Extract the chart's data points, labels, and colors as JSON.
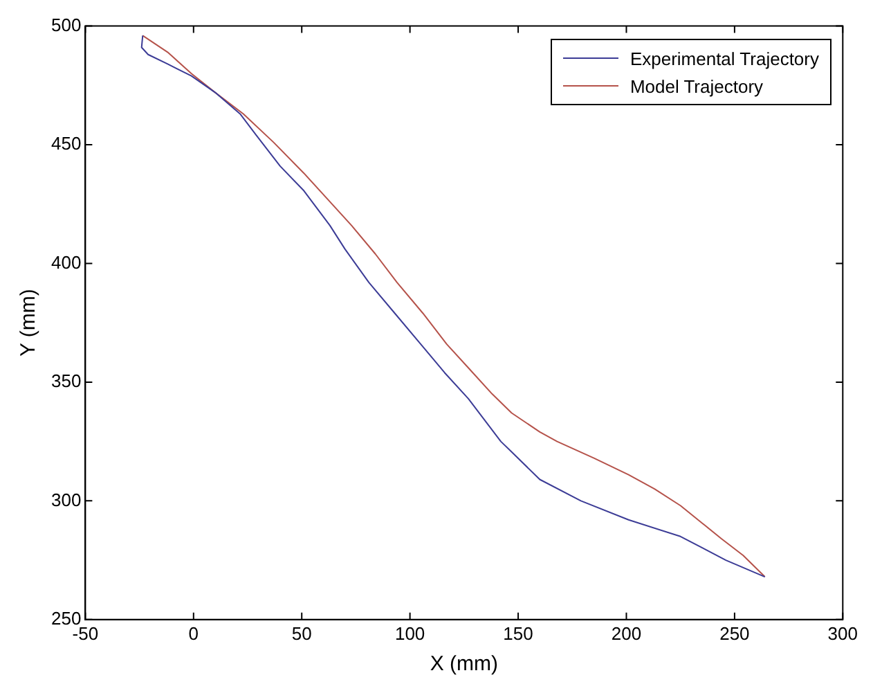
{
  "chart_data": {
    "type": "line",
    "xlabel": "X (mm)",
    "ylabel": "Y (mm)",
    "xlim": [
      -50,
      300
    ],
    "xticks": [
      -50,
      0,
      50,
      100,
      150,
      200,
      250,
      300
    ],
    "ylim": [
      250,
      500
    ],
    "yticks": [
      250,
      300,
      350,
      400,
      450,
      500
    ],
    "grid": false,
    "legend": "top right",
    "marker": "none",
    "line_style": "solid",
    "series": [
      {
        "name": "Experimental Trajectory",
        "color": "#3c3c96",
        "x": [
          -23.5,
          -24,
          -21,
          -12,
          -1,
          10,
          21.5,
          29,
          40,
          51,
          63,
          70,
          81,
          93,
          105,
          116,
          127,
          142,
          147,
          160,
          179,
          201,
          225,
          246,
          264
        ],
        "values": [
          496,
          491,
          488,
          484,
          479,
          472,
          463,
          454,
          441,
          430.6,
          416,
          406,
          392,
          379,
          366,
          354,
          343,
          325,
          320.6,
          309,
          300,
          292,
          285,
          275,
          268
        ]
      },
      {
        "name": "Model Trajectory",
        "color": "#b5524a",
        "x": [
          -23.5,
          -12,
          -1,
          10,
          23,
          37,
          51,
          62,
          73,
          84,
          94,
          106,
          117,
          128,
          138,
          147,
          160,
          168,
          185,
          201,
          213,
          225,
          244,
          254,
          264
        ],
        "values": [
          496,
          489,
          480,
          472,
          463,
          451,
          438,
          427,
          416,
          404,
          392,
          379,
          366,
          355,
          345,
          337,
          329,
          325,
          318,
          311,
          305,
          298,
          284,
          277,
          268
        ]
      }
    ]
  }
}
